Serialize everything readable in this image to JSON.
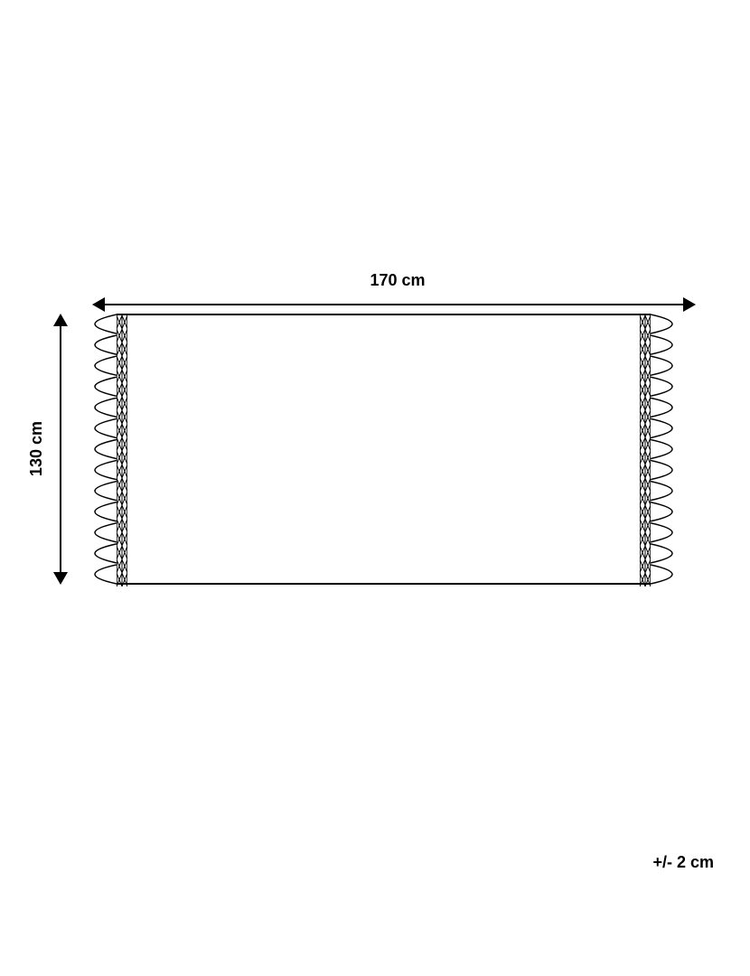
{
  "dimensions": {
    "width_label": "170 cm",
    "height_label": "130 cm",
    "tolerance_label": "+/- 2 cm"
  },
  "style": {
    "stroke_color": "#000000",
    "background_color": "#ffffff",
    "label_fontsize": 18,
    "label_fontweight": "bold",
    "line_width": 1.5,
    "fringe_count": 13,
    "edge_pattern_rows": 20
  }
}
